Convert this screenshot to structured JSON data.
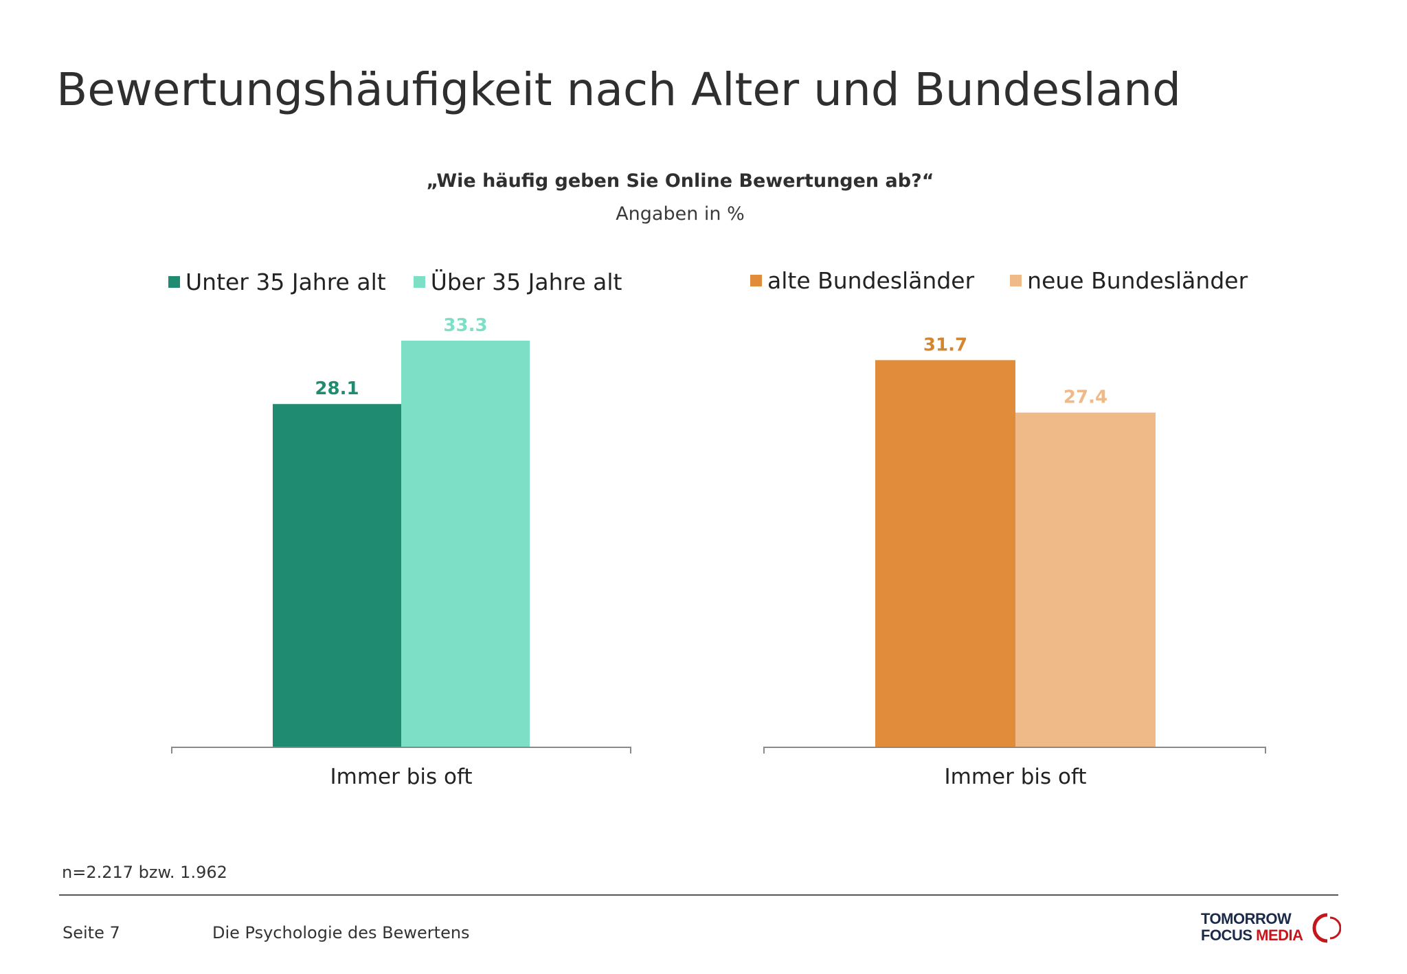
{
  "page": {
    "title": "Bewertungshäufigkeit nach Alter und Bundesland",
    "question": "„Wie häufig geben Sie Online Bewertungen ab?“",
    "units": "Angaben in %",
    "sample": "n=2.217 bzw. 1.962",
    "footer": {
      "page_label": "Seite 7",
      "document_title": "Die Psychologie des Bewertens"
    },
    "logo": {
      "line1": "TOMORROW",
      "line2_part1": "FOCUS ",
      "line2_part2": "MEDIA"
    }
  },
  "chart_data": [
    {
      "type": "bar",
      "categories": [
        "Immer bis oft"
      ],
      "series": [
        {
          "name": "Unter 35 Jahre alt",
          "values": [
            28.1
          ],
          "color": "#1f8c71",
          "label_color": "#1f8c71"
        },
        {
          "name": "Über 35 Jahre alt",
          "values": [
            33.3
          ],
          "color": "#7de0c6",
          "label_color": "#7de0c6"
        }
      ],
      "ylim": [
        0,
        40
      ],
      "legend_position": "top",
      "grid": false
    },
    {
      "type": "bar",
      "categories": [
        "Immer bis oft"
      ],
      "series": [
        {
          "name": "alte Bundesländer",
          "values": [
            31.7
          ],
          "color": "#e08c3a",
          "label_color": "#d4862f"
        },
        {
          "name": "neue Bundesländer",
          "values": [
            27.4
          ],
          "color": "#efb988",
          "label_color": "#efb988"
        }
      ],
      "ylim": [
        0,
        40
      ],
      "legend_position": "top",
      "grid": false
    }
  ]
}
